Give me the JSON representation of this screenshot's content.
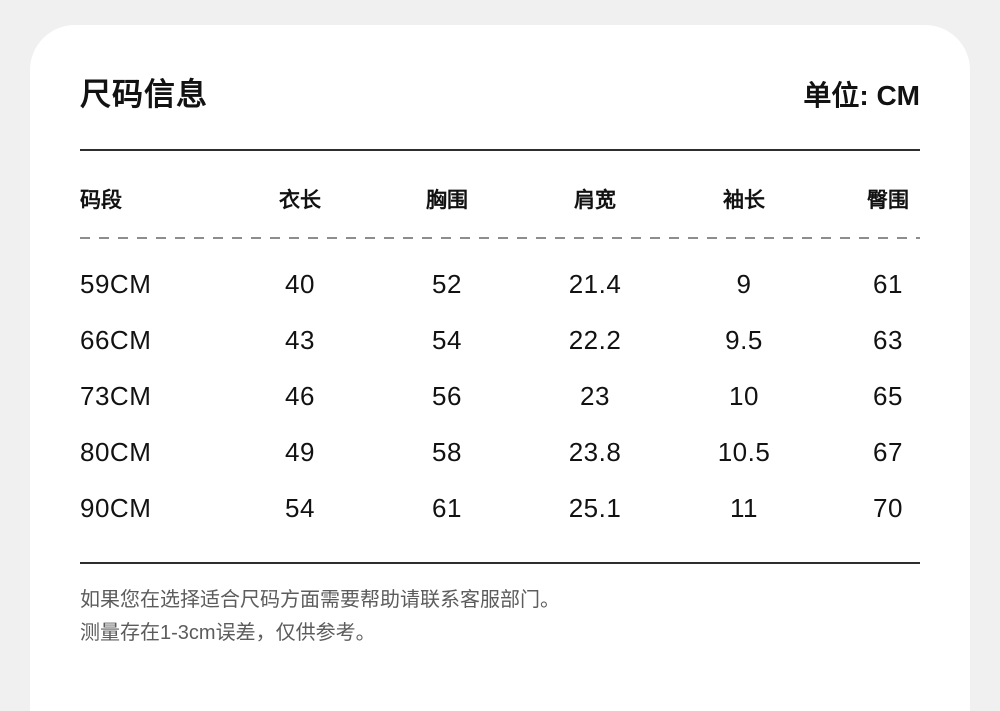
{
  "header": {
    "title": "尺码信息",
    "unit_label": "单位: CM"
  },
  "table": {
    "headers": [
      "码段",
      "衣长",
      "胸围",
      "肩宽",
      "袖长",
      "臀围"
    ],
    "rows": [
      [
        "59CM",
        "40",
        "52",
        "21.4",
        "9",
        "61"
      ],
      [
        "66CM",
        "43",
        "54",
        "22.2",
        "9.5",
        "63"
      ],
      [
        "73CM",
        "46",
        "56",
        "23",
        "10",
        "65"
      ],
      [
        "80CM",
        "49",
        "58",
        "23.8",
        "10.5",
        "67"
      ],
      [
        "90CM",
        "54",
        "61",
        "25.1",
        "11",
        "70"
      ]
    ]
  },
  "footer": {
    "help_text": "如果您在选择适合尺码方面需要帮助请联系客服部门。",
    "tolerance_text": "测量存在1-3cm误差，仅供参考。"
  },
  "colors": {
    "page_background": "#f0f0f0",
    "card_background": "#ffffff",
    "text_primary": "#121212",
    "text_secondary": "#5c5c5c",
    "solid_line": "#2e2e2e",
    "dashed_line": "#8d8d8d"
  }
}
